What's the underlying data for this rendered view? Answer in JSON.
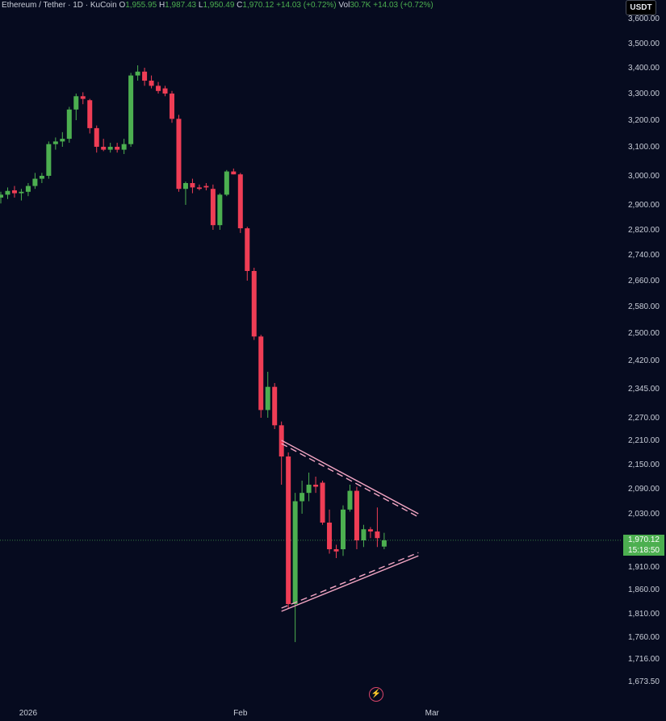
{
  "header": {
    "symbol": "Ethereum / Tether · 1D · KuCoin",
    "open_label": "O",
    "open": "1,955.95",
    "high_label": "H",
    "high": "1,987.43",
    "low_label": "L",
    "low": "1,950.49",
    "close_label": "C",
    "close": "1,970.12",
    "change": "+14.03 (+0.72%)",
    "vol_label": "Vol",
    "volume": "30.7K",
    "change2": "+14.03 (+0.72%)"
  },
  "unit": "USDT",
  "current_price": "1,970.12",
  "countdown": "15:18:50",
  "colors": {
    "background": "#060b1f",
    "up": "#4caf50",
    "down": "#ef3d55",
    "pattern": "#f3a6c4",
    "price_line": "#4caf50"
  },
  "chart_data": {
    "type": "candlestick",
    "title": "Ethereum / Tether · 1D · KuCoin",
    "y_axis_ticks": [
      {
        "label": "3,600.00",
        "value": 3600
      },
      {
        "label": "3,500.00",
        "value": 3500
      },
      {
        "label": "3,400.00",
        "value": 3400
      },
      {
        "label": "3,300.00",
        "value": 3300
      },
      {
        "label": "3,200.00",
        "value": 3200
      },
      {
        "label": "3,100.00",
        "value": 3100
      },
      {
        "label": "3,000.00",
        "value": 3000
      },
      {
        "label": "2,900.00",
        "value": 2900
      },
      {
        "label": "2,820.00",
        "value": 2820
      },
      {
        "label": "2,740.00",
        "value": 2740
      },
      {
        "label": "2,660.00",
        "value": 2660
      },
      {
        "label": "2,580.00",
        "value": 2580
      },
      {
        "label": "2,500.00",
        "value": 2500
      },
      {
        "label": "2,420.00",
        "value": 2420
      },
      {
        "label": "2,345.00",
        "value": 2345
      },
      {
        "label": "2,270.00",
        "value": 2270
      },
      {
        "label": "2,210.00",
        "value": 2210
      },
      {
        "label": "2,150.00",
        "value": 2150
      },
      {
        "label": "2,090.00",
        "value": 2090
      },
      {
        "label": "2,030.00",
        "value": 2030
      },
      {
        "label": "1,910.00",
        "value": 1910
      },
      {
        "label": "1,860.00",
        "value": 1860
      },
      {
        "label": "1,810.00",
        "value": 1810
      },
      {
        "label": "1,760.00",
        "value": 1760
      },
      {
        "label": "1,716.00",
        "value": 1716
      },
      {
        "label": "1,673.50",
        "value": 1673.5
      }
    ],
    "x_axis_ticks": [
      {
        "label": "2026",
        "index": 4
      },
      {
        "label": "Feb",
        "index": 35
      },
      {
        "label": "Mar",
        "index": 63
      }
    ],
    "candles": [
      {
        "o": 2925,
        "h": 2945,
        "l": 2905,
        "c": 2935
      },
      {
        "o": 2935,
        "h": 2960,
        "l": 2920,
        "c": 2948
      },
      {
        "o": 2950,
        "h": 2965,
        "l": 2925,
        "c": 2940
      },
      {
        "o": 2940,
        "h": 2955,
        "l": 2915,
        "c": 2945
      },
      {
        "o": 2945,
        "h": 2975,
        "l": 2930,
        "c": 2965
      },
      {
        "o": 2965,
        "h": 3010,
        "l": 2955,
        "c": 2990
      },
      {
        "o": 2990,
        "h": 3010,
        "l": 2975,
        "c": 3000
      },
      {
        "o": 3000,
        "h": 3120,
        "l": 2990,
        "c": 3110
      },
      {
        "o": 3110,
        "h": 3135,
        "l": 3090,
        "c": 3120
      },
      {
        "o": 3120,
        "h": 3155,
        "l": 3100,
        "c": 3130
      },
      {
        "o": 3130,
        "h": 3250,
        "l": 3115,
        "c": 3240
      },
      {
        "o": 3240,
        "h": 3300,
        "l": 3200,
        "c": 3290
      },
      {
        "o": 3290,
        "h": 3305,
        "l": 3260,
        "c": 3280
      },
      {
        "o": 3275,
        "h": 3280,
        "l": 3150,
        "c": 3170
      },
      {
        "o": 3170,
        "h": 3180,
        "l": 3080,
        "c": 3100
      },
      {
        "o": 3100,
        "h": 3130,
        "l": 3085,
        "c": 3090
      },
      {
        "o": 3090,
        "h": 3115,
        "l": 3080,
        "c": 3100
      },
      {
        "o": 3100,
        "h": 3115,
        "l": 3080,
        "c": 3090
      },
      {
        "o": 3090,
        "h": 3130,
        "l": 3075,
        "c": 3110
      },
      {
        "o": 3110,
        "h": 3380,
        "l": 3100,
        "c": 3370
      },
      {
        "o": 3370,
        "h": 3410,
        "l": 3350,
        "c": 3385
      },
      {
        "o": 3385,
        "h": 3400,
        "l": 3330,
        "c": 3350
      },
      {
        "o": 3350,
        "h": 3370,
        "l": 3320,
        "c": 3330
      },
      {
        "o": 3330,
        "h": 3345,
        "l": 3300,
        "c": 3310
      },
      {
        "o": 3320,
        "h": 3330,
        "l": 3290,
        "c": 3300
      },
      {
        "o": 3300,
        "h": 3310,
        "l": 3190,
        "c": 3205
      },
      {
        "o": 3205,
        "h": 3220,
        "l": 2945,
        "c": 2955
      },
      {
        "o": 2955,
        "h": 2980,
        "l": 2900,
        "c": 2975
      },
      {
        "o": 2975,
        "h": 2990,
        "l": 2940,
        "c": 2960
      },
      {
        "o": 2960,
        "h": 2970,
        "l": 2950,
        "c": 2955
      },
      {
        "o": 2965,
        "h": 2975,
        "l": 2950,
        "c": 2960
      },
      {
        "o": 2955,
        "h": 2970,
        "l": 2820,
        "c": 2835
      },
      {
        "o": 2835,
        "h": 2940,
        "l": 2820,
        "c": 2935
      },
      {
        "o": 2935,
        "h": 3020,
        "l": 2930,
        "c": 3015
      },
      {
        "o": 3015,
        "h": 3025,
        "l": 3005,
        "c": 3005
      },
      {
        "o": 3005,
        "h": 3010,
        "l": 2810,
        "c": 2825
      },
      {
        "o": 2825,
        "h": 2830,
        "l": 2660,
        "c": 2690
      },
      {
        "o": 2690,
        "h": 2700,
        "l": 2480,
        "c": 2490
      },
      {
        "o": 2490,
        "h": 2495,
        "l": 2270,
        "c": 2290
      },
      {
        "o": 2290,
        "h": 2390,
        "l": 2270,
        "c": 2350
      },
      {
        "o": 2350,
        "h": 2360,
        "l": 2240,
        "c": 2250
      },
      {
        "o": 2250,
        "h": 2260,
        "l": 2100,
        "c": 2170
      },
      {
        "o": 2170,
        "h": 2180,
        "l": 1820,
        "c": 1830
      },
      {
        "o": 1830,
        "h": 2080,
        "l": 1750,
        "c": 2060
      },
      {
        "o": 2060,
        "h": 2110,
        "l": 2030,
        "c": 2080
      },
      {
        "o": 2080,
        "h": 2130,
        "l": 2060,
        "c": 2100
      },
      {
        "o": 2100,
        "h": 2120,
        "l": 2080,
        "c": 2095
      },
      {
        "o": 2105,
        "h": 2110,
        "l": 2005,
        "c": 2010
      },
      {
        "o": 2010,
        "h": 2040,
        "l": 1940,
        "c": 1950
      },
      {
        "o": 1950,
        "h": 1960,
        "l": 1930,
        "c": 1945
      },
      {
        "o": 1950,
        "h": 2050,
        "l": 1935,
        "c": 2040
      },
      {
        "o": 2040,
        "h": 2100,
        "l": 2035,
        "c": 2085
      },
      {
        "o": 2085,
        "h": 2095,
        "l": 1950,
        "c": 1970
      },
      {
        "o": 1970,
        "h": 2005,
        "l": 1955,
        "c": 1995
      },
      {
        "o": 1995,
        "h": 2000,
        "l": 1975,
        "c": 1990
      },
      {
        "o": 1990,
        "h": 2045,
        "l": 1955,
        "c": 1975
      },
      {
        "o": 1956,
        "h": 1987,
        "l": 1950,
        "c": 1970
      }
    ],
    "triangle_pattern": {
      "upper_line": {
        "from": {
          "index": 41,
          "price": 2210
        },
        "to": {
          "index": 61,
          "price": 2030
        }
      },
      "lower_line": {
        "from": {
          "index": 41,
          "price": 1815
        },
        "to": {
          "index": 61,
          "price": 1935
        }
      }
    },
    "current_price_value": 1970.12,
    "grid": false,
    "legend": "none"
  }
}
